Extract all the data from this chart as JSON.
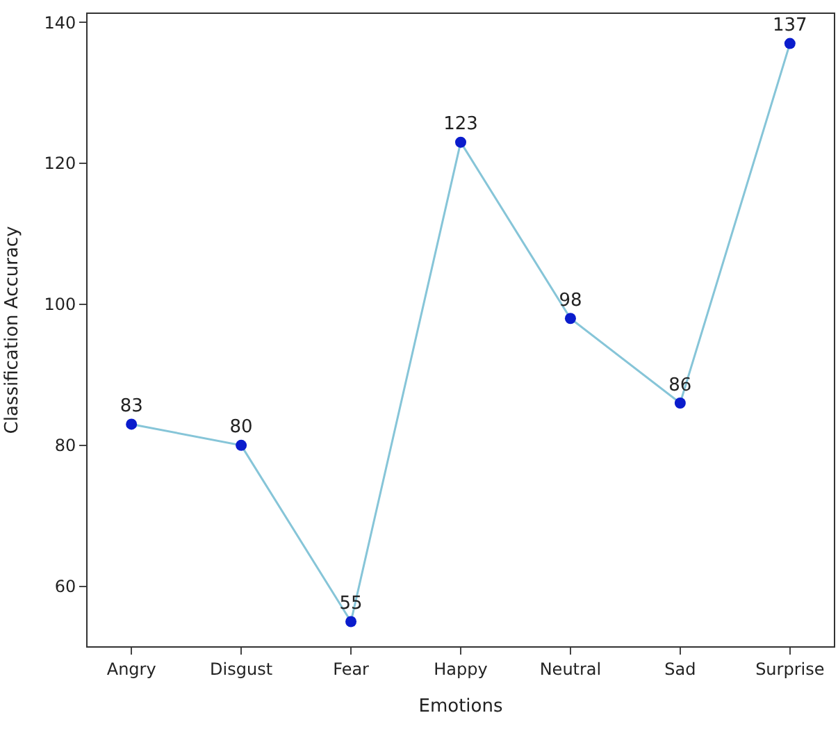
{
  "chart_data": {
    "type": "line",
    "xlabel": "Emotions",
    "ylabel": "Classification Accuracy",
    "categories": [
      "Angry",
      "Disgust",
      "Fear",
      "Happy",
      "Neutral",
      "Sad",
      "Surprise"
    ],
    "series": [
      {
        "color": "#86c5d8",
        "colors": [
          "#0a1ccc",
          "#0a1ccc",
          "#0a1ccc",
          "#0a1ccc",
          "#0a1ccc",
          "#0a1ccc",
          "#0a1ccc"
        ],
        "values": [
          83,
          80,
          55,
          123,
          98,
          86,
          137
        ]
      }
    ],
    "marker": "circle",
    "ylim": [
      51.5,
      141.2
    ],
    "yticks": [
      60,
      80,
      100,
      120,
      140
    ],
    "data_labels": true
  }
}
